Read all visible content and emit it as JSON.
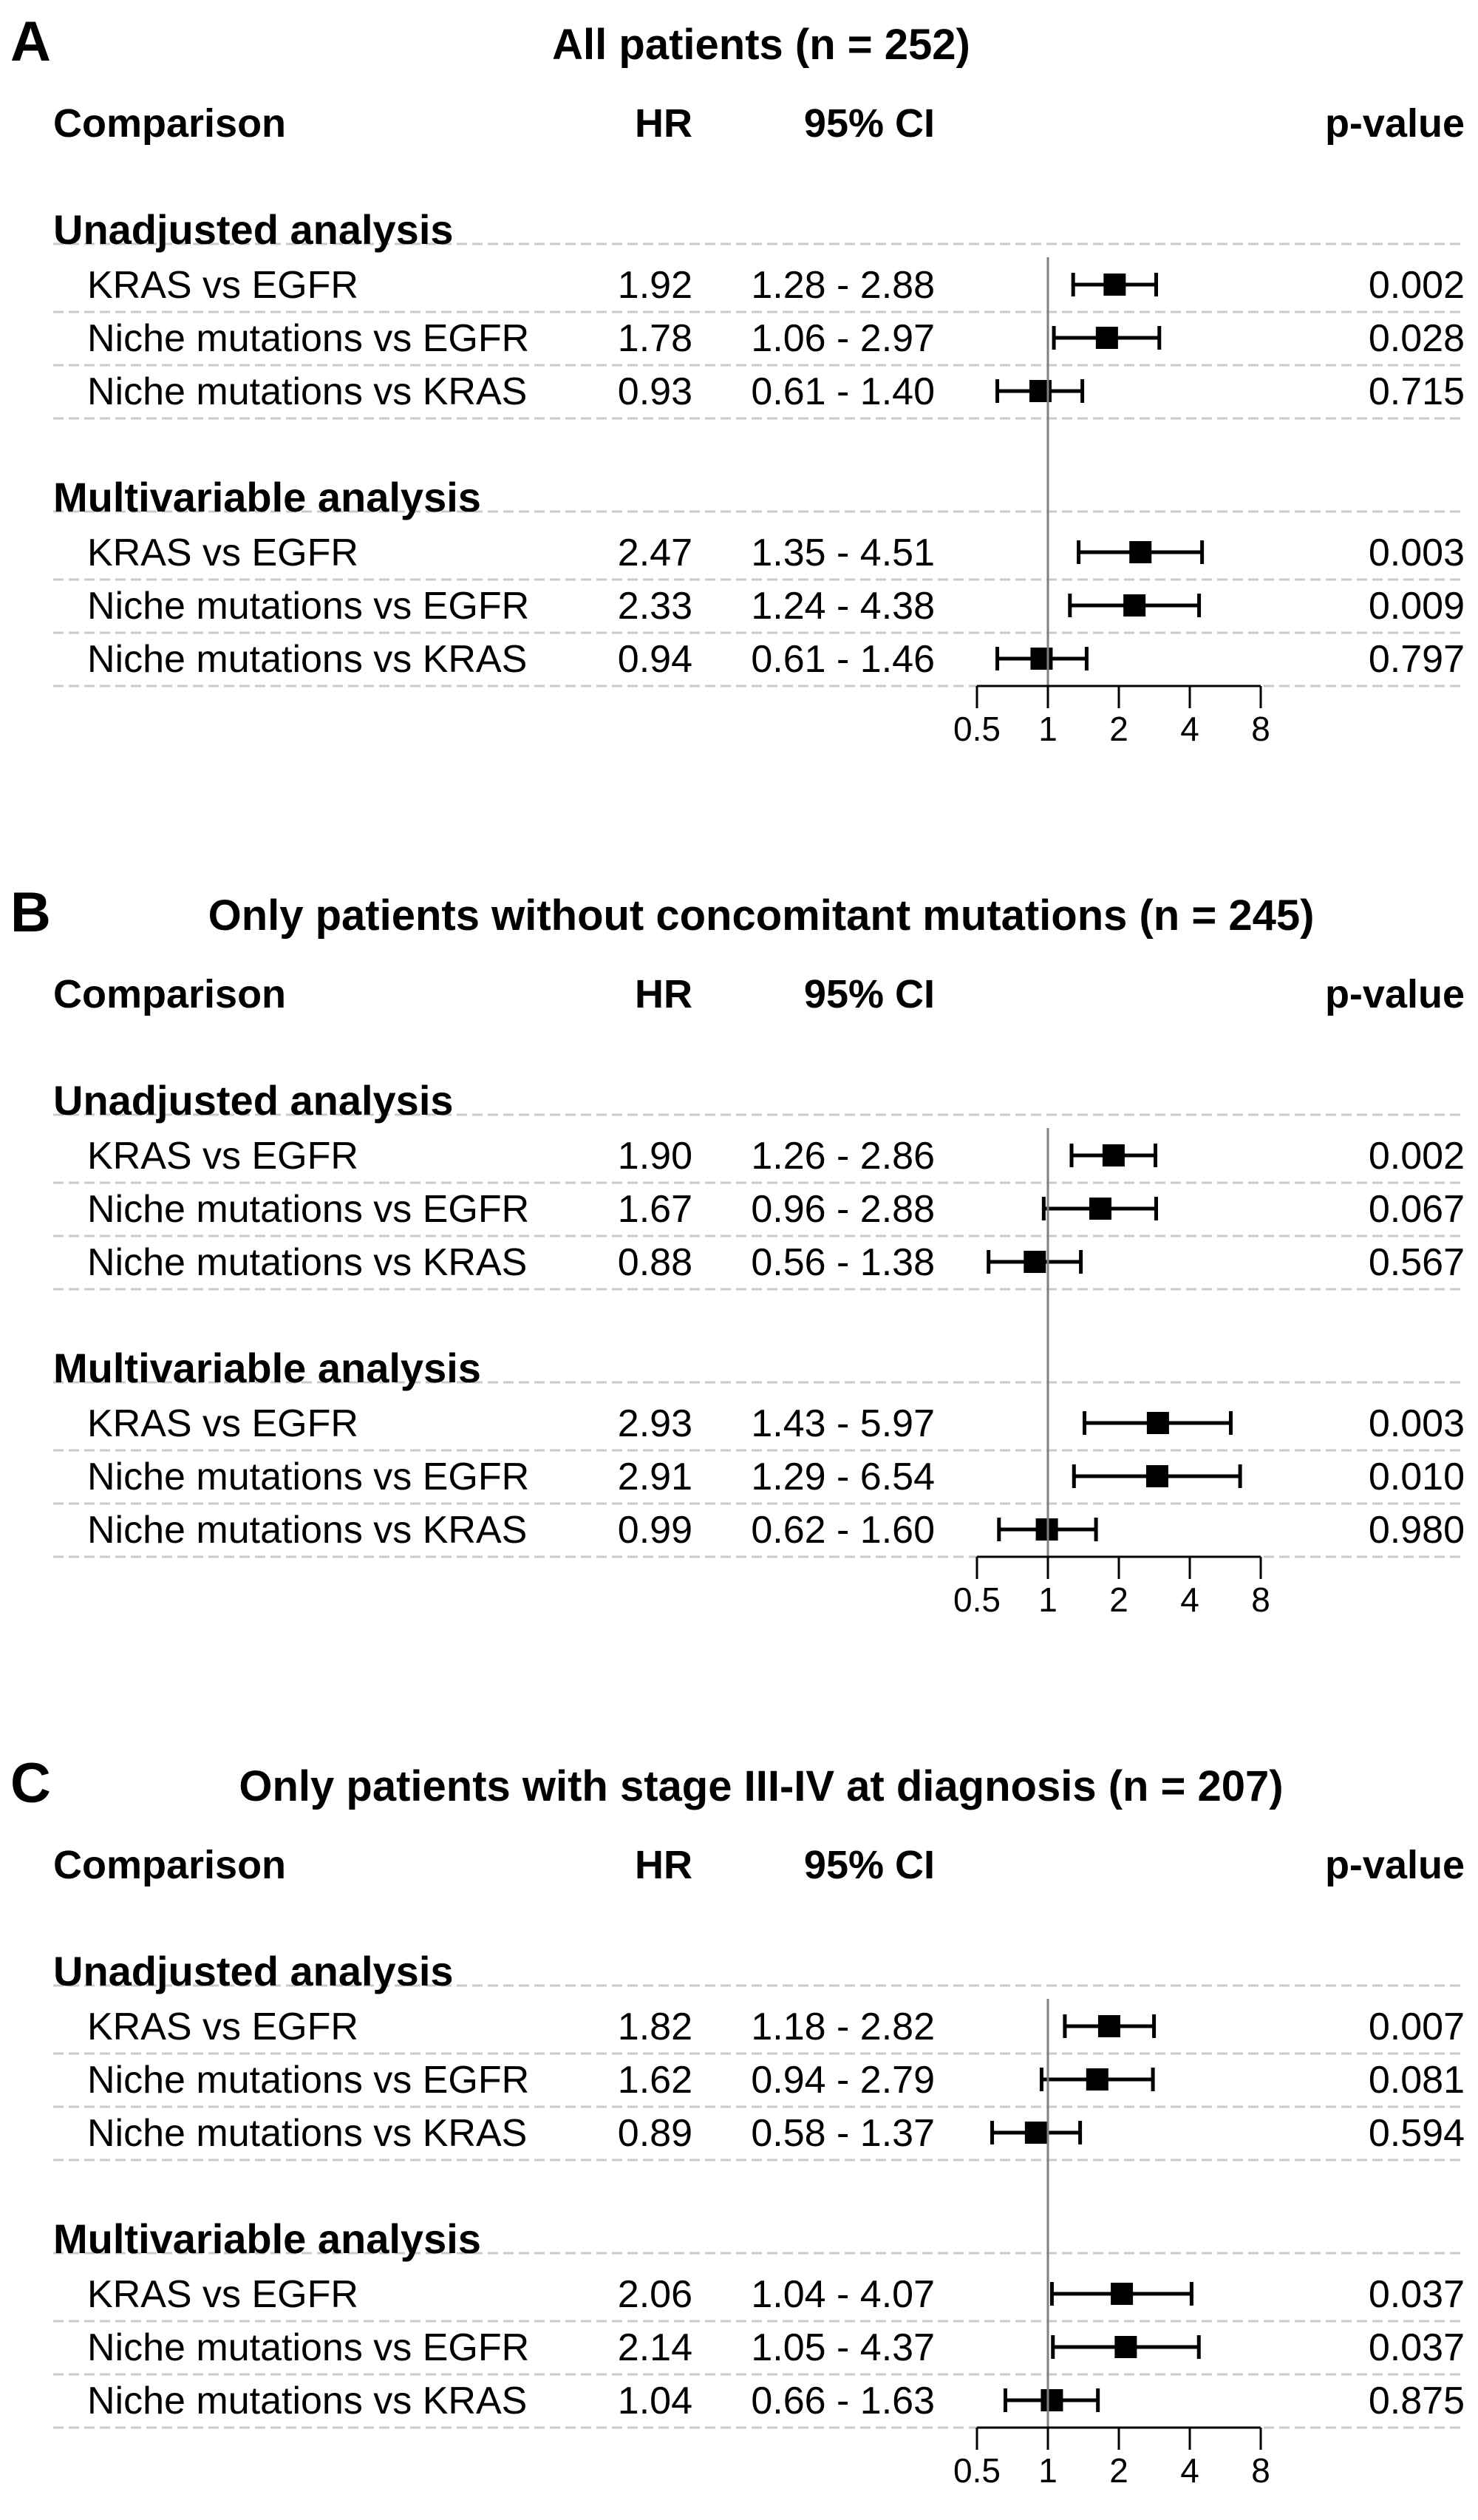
{
  "panels": [
    {
      "letter": "A",
      "title": "All patients (n = 252)",
      "headers": {
        "comparison": "Comparison",
        "hr": "HR",
        "ci": "95% CI",
        "p": "p-value"
      },
      "groups": [
        {
          "label": "Unadjusted analysis",
          "rows": [
            {
              "comparison": "KRAS vs EGFR",
              "hr_text": "1.92",
              "ci_text": "1.28 - 2.88",
              "p_text": "0.002"
            },
            {
              "comparison": "Niche mutations vs EGFR",
              "hr_text": "1.78",
              "ci_text": "1.06 - 2.97",
              "p_text": "0.028"
            },
            {
              "comparison": "Niche mutations vs KRAS",
              "hr_text": "0.93",
              "ci_text": "0.61 - 1.40",
              "p_text": "0.715"
            }
          ]
        },
        {
          "label": "Multivariable analysis",
          "rows": [
            {
              "comparison": "KRAS vs EGFR",
              "hr_text": "2.47",
              "ci_text": "1.35 - 4.51",
              "p_text": "0.003"
            },
            {
              "comparison": "Niche mutations vs EGFR",
              "hr_text": "2.33",
              "ci_text": "1.24 - 4.38",
              "p_text": "0.009"
            },
            {
              "comparison": "Niche mutations vs KRAS",
              "hr_text": "0.94",
              "ci_text": "0.61 - 1.46",
              "p_text": "0.797"
            }
          ]
        }
      ]
    },
    {
      "letter": "B",
      "title": "Only patients without concomitant mutations (n = 245)",
      "headers": {
        "comparison": "Comparison",
        "hr": "HR",
        "ci": "95% CI",
        "p": "p-value"
      },
      "groups": [
        {
          "label": "Unadjusted analysis",
          "rows": [
            {
              "comparison": "KRAS vs EGFR",
              "hr_text": "1.90",
              "ci_text": "1.26 - 2.86",
              "p_text": "0.002"
            },
            {
              "comparison": "Niche mutations vs EGFR",
              "hr_text": "1.67",
              "ci_text": "0.96 - 2.88",
              "p_text": "0.067"
            },
            {
              "comparison": "Niche mutations vs KRAS",
              "hr_text": "0.88",
              "ci_text": "0.56 - 1.38",
              "p_text": "0.567"
            }
          ]
        },
        {
          "label": "Multivariable analysis",
          "rows": [
            {
              "comparison": "KRAS vs EGFR",
              "hr_text": "2.93",
              "ci_text": "1.43 - 5.97",
              "p_text": "0.003"
            },
            {
              "comparison": "Niche mutations vs EGFR",
              "hr_text": "2.91",
              "ci_text": "1.29 - 6.54",
              "p_text": "0.010"
            },
            {
              "comparison": "Niche mutations vs KRAS",
              "hr_text": "0.99",
              "ci_text": "0.62 - 1.60",
              "p_text": "0.980"
            }
          ]
        }
      ]
    },
    {
      "letter": "C",
      "title": "Only patients with stage III-IV at diagnosis  (n = 207)",
      "headers": {
        "comparison": "Comparison",
        "hr": "HR",
        "ci": "95% CI",
        "p": "p-value"
      },
      "groups": [
        {
          "label": "Unadjusted analysis",
          "rows": [
            {
              "comparison": "KRAS vs EGFR",
              "hr_text": "1.82",
              "ci_text": "1.18 - 2.82",
              "p_text": "0.007"
            },
            {
              "comparison": "Niche mutations vs EGFR",
              "hr_text": "1.62",
              "ci_text": "0.94 - 2.79",
              "p_text": "0.081"
            },
            {
              "comparison": "Niche mutations vs KRAS",
              "hr_text": "0.89",
              "ci_text": "0.58 - 1.37",
              "p_text": "0.594"
            }
          ]
        },
        {
          "label": "Multivariable analysis",
          "rows": [
            {
              "comparison": "KRAS vs EGFR",
              "hr_text": "2.06",
              "ci_text": "1.04 - 4.07",
              "p_text": "0.037"
            },
            {
              "comparison": "Niche mutations vs EGFR",
              "hr_text": "2.14",
              "ci_text": "1.05 - 4.37",
              "p_text": "0.037"
            },
            {
              "comparison": "Niche mutations vs KRAS",
              "hr_text": "1.04",
              "ci_text": "0.66 - 1.63",
              "p_text": "0.875"
            }
          ]
        }
      ]
    }
  ],
  "chart_data": [
    {
      "type": "forest",
      "title": "All patients (n = 252)",
      "x_scale": "log2",
      "xlim": [
        0.5,
        8
      ],
      "x_ticks": [
        0.5,
        1,
        2,
        4,
        8
      ],
      "x_tick_labels": [
        "0.5",
        "1",
        "2",
        "4",
        "8"
      ],
      "reference_line": 1,
      "points": [
        {
          "label": "KRAS vs EGFR",
          "group": "Unadjusted analysis",
          "hr": 1.92,
          "lo": 1.28,
          "hi": 2.88
        },
        {
          "label": "Niche mutations vs EGFR",
          "group": "Unadjusted analysis",
          "hr": 1.78,
          "lo": 1.06,
          "hi": 2.97
        },
        {
          "label": "Niche mutations vs KRAS",
          "group": "Unadjusted analysis",
          "hr": 0.93,
          "lo": 0.61,
          "hi": 1.4
        },
        {
          "label": "KRAS vs EGFR",
          "group": "Multivariable analysis",
          "hr": 2.47,
          "lo": 1.35,
          "hi": 4.51
        },
        {
          "label": "Niche mutations vs EGFR",
          "group": "Multivariable analysis",
          "hr": 2.33,
          "lo": 1.24,
          "hi": 4.38
        },
        {
          "label": "Niche mutations vs KRAS",
          "group": "Multivariable analysis",
          "hr": 0.94,
          "lo": 0.61,
          "hi": 1.46
        }
      ]
    },
    {
      "type": "forest",
      "title": "Only patients without concomitant mutations (n = 245)",
      "x_scale": "log2",
      "xlim": [
        0.5,
        8
      ],
      "x_ticks": [
        0.5,
        1,
        2,
        4,
        8
      ],
      "x_tick_labels": [
        "0.5",
        "1",
        "2",
        "4",
        "8"
      ],
      "reference_line": 1,
      "points": [
        {
          "label": "KRAS vs EGFR",
          "group": "Unadjusted analysis",
          "hr": 1.9,
          "lo": 1.26,
          "hi": 2.86
        },
        {
          "label": "Niche mutations vs EGFR",
          "group": "Unadjusted analysis",
          "hr": 1.67,
          "lo": 0.96,
          "hi": 2.88
        },
        {
          "label": "Niche mutations vs KRAS",
          "group": "Unadjusted analysis",
          "hr": 0.88,
          "lo": 0.56,
          "hi": 1.38
        },
        {
          "label": "KRAS vs EGFR",
          "group": "Multivariable analysis",
          "hr": 2.93,
          "lo": 1.43,
          "hi": 5.97
        },
        {
          "label": "Niche mutations vs EGFR",
          "group": "Multivariable analysis",
          "hr": 2.91,
          "lo": 1.29,
          "hi": 6.54
        },
        {
          "label": "Niche mutations vs KRAS",
          "group": "Multivariable analysis",
          "hr": 0.99,
          "lo": 0.62,
          "hi": 1.6
        }
      ]
    },
    {
      "type": "forest",
      "title": "Only patients with stage III-IV at diagnosis  (n = 207)",
      "x_scale": "log2",
      "xlim": [
        0.5,
        8
      ],
      "x_ticks": [
        0.5,
        1,
        2,
        4,
        8
      ],
      "x_tick_labels": [
        "0.5",
        "1",
        "2",
        "4",
        "8"
      ],
      "reference_line": 1,
      "points": [
        {
          "label": "KRAS vs EGFR",
          "group": "Unadjusted analysis",
          "hr": 1.82,
          "lo": 1.18,
          "hi": 2.82
        },
        {
          "label": "Niche mutations vs EGFR",
          "group": "Unadjusted analysis",
          "hr": 1.62,
          "lo": 0.94,
          "hi": 2.79
        },
        {
          "label": "Niche mutations vs KRAS",
          "group": "Unadjusted analysis",
          "hr": 0.89,
          "lo": 0.58,
          "hi": 1.37
        },
        {
          "label": "KRAS vs EGFR",
          "group": "Multivariable analysis",
          "hr": 2.06,
          "lo": 1.04,
          "hi": 4.07
        },
        {
          "label": "Niche mutations vs EGFR",
          "group": "Multivariable analysis",
          "hr": 2.14,
          "lo": 1.05,
          "hi": 4.37
        },
        {
          "label": "Niche mutations vs KRAS",
          "group": "Multivariable analysis",
          "hr": 1.04,
          "lo": 0.66,
          "hi": 1.63
        }
      ]
    }
  ]
}
